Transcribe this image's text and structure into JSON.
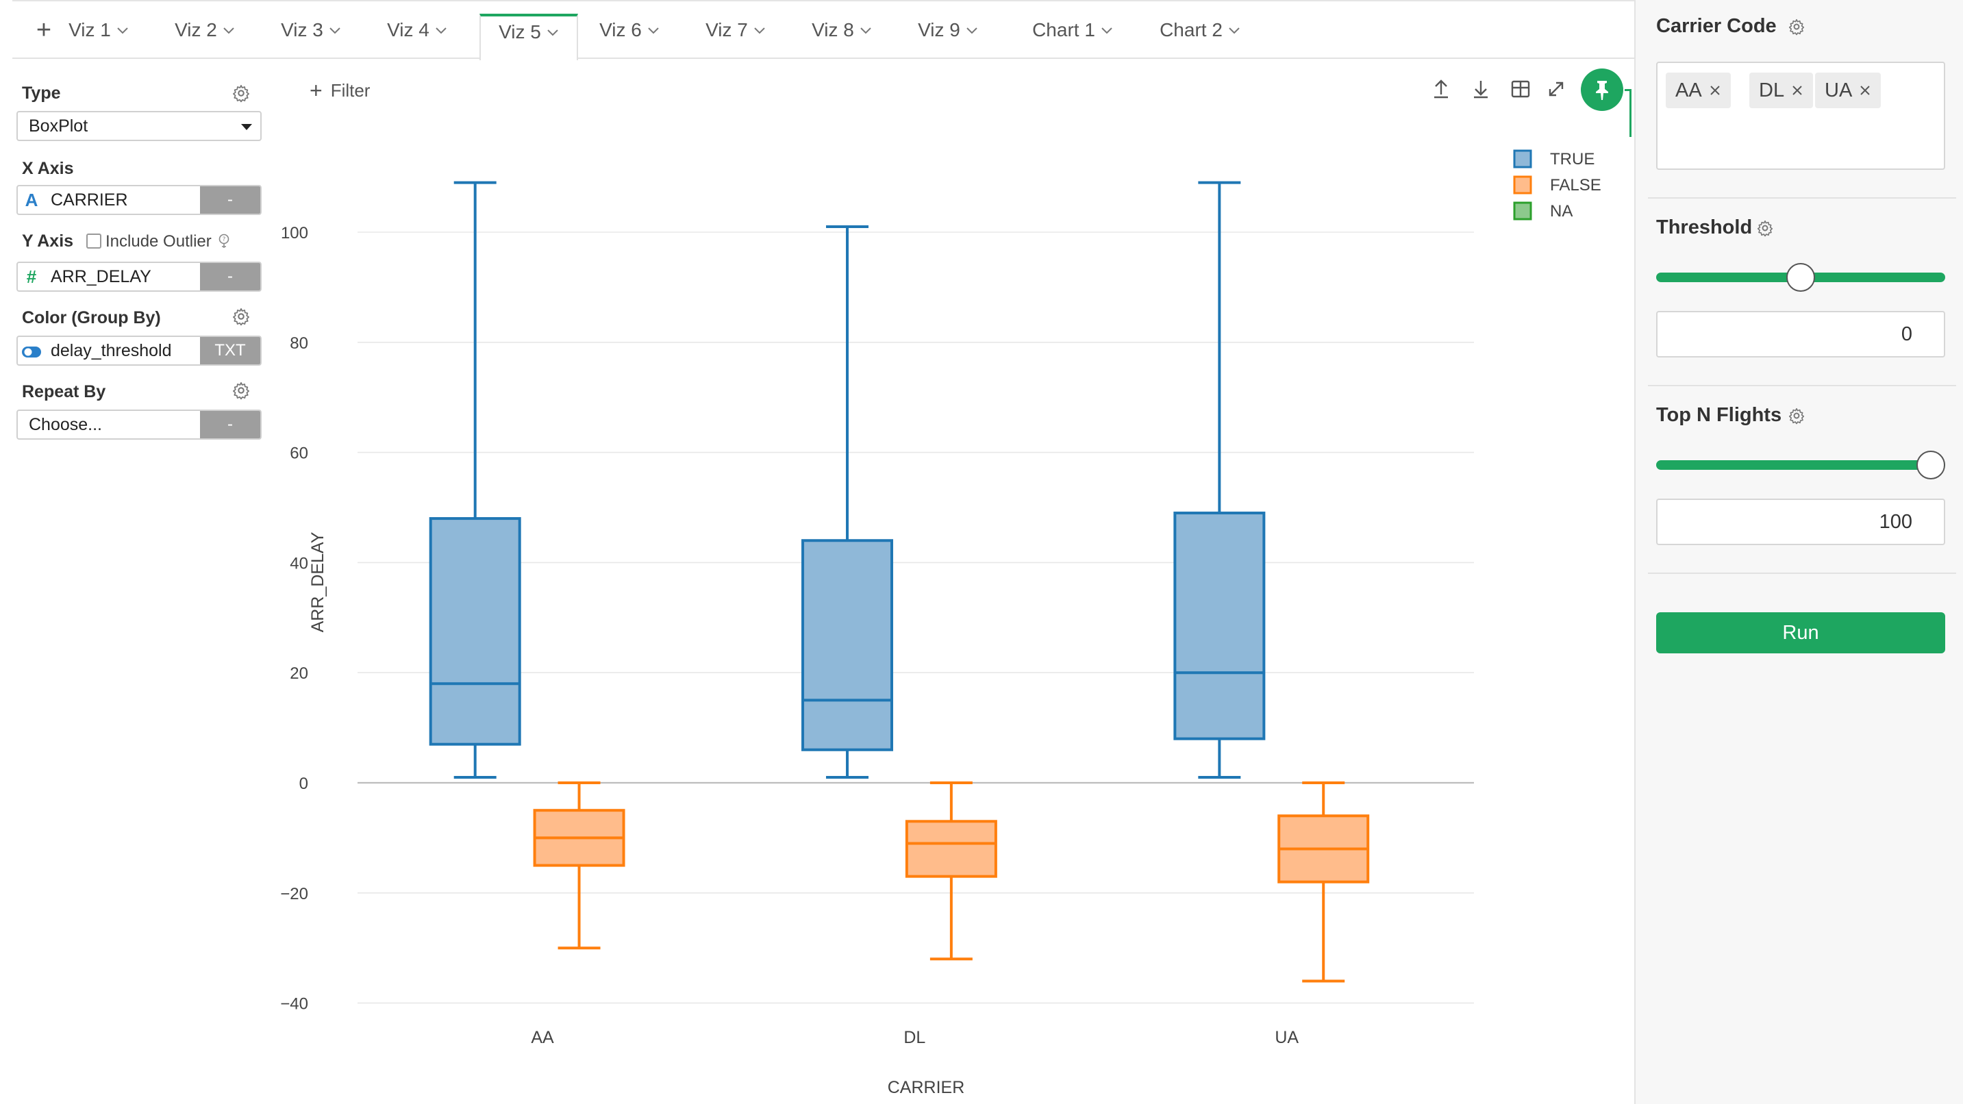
{
  "tabs": {
    "add_label": "+",
    "items": [
      {
        "label": "Viz 1",
        "active": false
      },
      {
        "label": "Viz 2",
        "active": false
      },
      {
        "label": "Viz 3",
        "active": false
      },
      {
        "label": "Viz 4",
        "active": false
      },
      {
        "label": "Viz 5",
        "active": true
      },
      {
        "label": "Viz 6",
        "active": false
      },
      {
        "label": "Viz 7",
        "active": false
      },
      {
        "label": "Viz 8",
        "active": false
      },
      {
        "label": "Viz 9",
        "active": false
      },
      {
        "label": "Chart 1",
        "active": false
      },
      {
        "label": "Chart 2",
        "active": false
      }
    ]
  },
  "config": {
    "type": {
      "title": "Type",
      "value": "BoxPlot"
    },
    "x_axis": {
      "title": "X Axis",
      "field_icon": "A",
      "field": "CARRIER",
      "button": "-"
    },
    "y_axis": {
      "title": "Y Axis",
      "include_outlier_label": "Include Outlier",
      "field_icon": "#",
      "field": "ARR_DELAY",
      "button": "-"
    },
    "color": {
      "title": "Color (Group By)",
      "field": "delay_threshold",
      "button": "TXT"
    },
    "repeat": {
      "title": "Repeat By",
      "placeholder": "Choose...",
      "button": "-"
    }
  },
  "toolbar": {
    "filter_label": "Filter"
  },
  "colors": {
    "accent": "#1ea660",
    "true_series": "#1f77b4",
    "true_fill": "#8fb8d8",
    "false_series": "#ff7f0e",
    "false_fill": "#ffbc8b",
    "na_series": "#2ca02c",
    "na_fill": "#8cc98c"
  },
  "chart_data": {
    "type": "boxplot",
    "xlabel": "CARRIER",
    "ylabel": "ARR_DELAY",
    "categories": [
      "AA",
      "DL",
      "UA"
    ],
    "ylim": [
      -42,
      110
    ],
    "yticks": [
      -40,
      -20,
      0,
      20,
      40,
      60,
      80,
      100
    ],
    "ytick_labels": [
      "−40",
      "−20",
      "0",
      "20",
      "40",
      "60",
      "80",
      "100"
    ],
    "grid": true,
    "legend_position": "top-right",
    "legend": [
      "TRUE",
      "FALSE",
      "NA"
    ],
    "series": [
      {
        "name": "TRUE",
        "boxes": [
          {
            "min": 1,
            "q1": 7,
            "median": 18,
            "q3": 48,
            "max": 109
          },
          {
            "min": 1,
            "q1": 6,
            "median": 15,
            "q3": 44,
            "max": 101
          },
          {
            "min": 1,
            "q1": 8,
            "median": 20,
            "q3": 49,
            "max": 109
          }
        ]
      },
      {
        "name": "FALSE",
        "boxes": [
          {
            "min": -30,
            "q1": -15,
            "median": -10,
            "q3": -5,
            "max": 0
          },
          {
            "min": -32,
            "q1": -17,
            "median": -11,
            "q3": -7,
            "max": 0
          },
          {
            "min": -36,
            "q1": -18,
            "median": -12,
            "q3": -6,
            "max": 0
          }
        ]
      },
      {
        "name": "NA",
        "boxes": []
      }
    ]
  },
  "params": {
    "carrier": {
      "title": "Carrier Code",
      "tags": [
        "AA",
        "DL",
        "UA"
      ]
    },
    "threshold": {
      "title": "Threshold",
      "value": "0",
      "slider_fraction": 0.5
    },
    "top_n": {
      "title": "Top N Flights",
      "value": "100",
      "slider_fraction": 1.0
    },
    "run_label": "Run"
  }
}
